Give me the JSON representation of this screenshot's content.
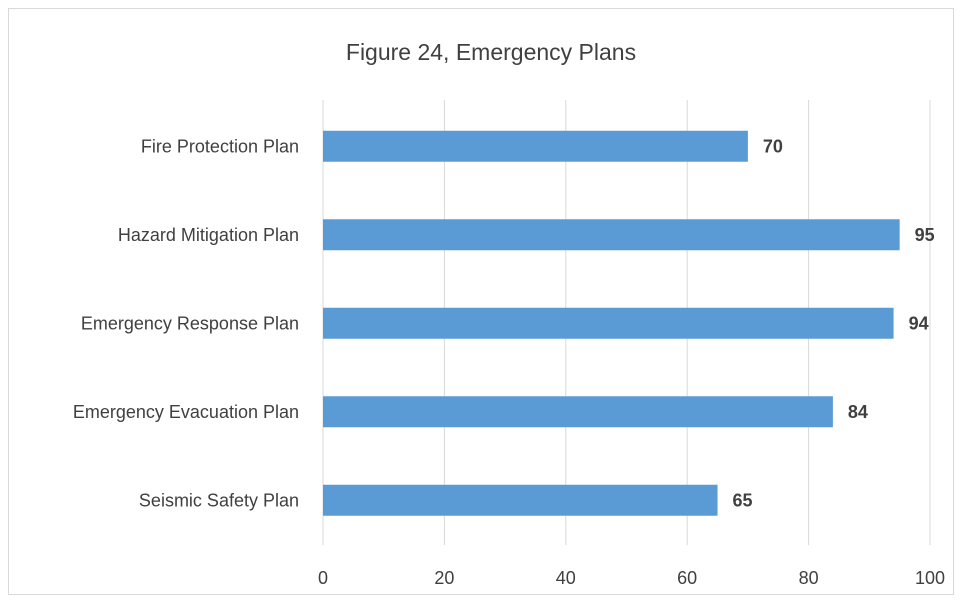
{
  "chart_data": {
    "type": "bar",
    "orientation": "horizontal",
    "title": "Figure 24, Emergency Plans",
    "categories": [
      "Fire Protection Plan",
      "Hazard Mitigation Plan",
      "Emergency Response Plan",
      "Emergency Evacuation Plan",
      "Seismic Safety Plan"
    ],
    "values": [
      70,
      95,
      94,
      84,
      65
    ],
    "xlim": [
      0,
      100
    ],
    "xticks": [
      0,
      20,
      40,
      60,
      80,
      100
    ],
    "xlabel": "",
    "ylabel": "",
    "grid": true,
    "legend": "none",
    "data_labels": true,
    "bar_color": "#5b9bd5",
    "grid_color": "#d9d9d9",
    "text_color": "#404040"
  }
}
